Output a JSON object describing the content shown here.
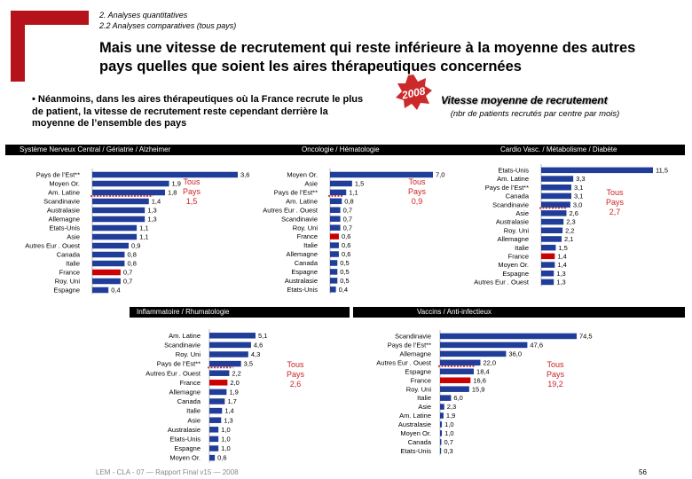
{
  "header": {
    "breadcrumb_line1": "2. Analyses quantitatives",
    "breadcrumb_line2": "2.2 Analyses comparatives (tous pays)",
    "title": "Mais une vitesse de recrutement qui reste inférieure à la moyenne des autres pays quelles que soient les aires thérapeutiques concernées"
  },
  "bullet": "• Néanmoins, dans les aires thérapeutiques où la France recrute le plus de patient, la vitesse de recrutement reste cependant derrière la moyenne de l’ensemble des pays",
  "badge": {
    "year": "2008",
    "color": "#cc2a2a"
  },
  "speed": {
    "title": "Vitesse moyenne de recrutement",
    "subtitle": "(nbr de patients recrutés par centre par mois)"
  },
  "colors": {
    "bar": "#1f3d99",
    "france": "#cc0000",
    "avg_line": "#cc3333",
    "tous": "#cc2222",
    "logo": "#b5121b"
  },
  "footer": {
    "text": "LEM - CLA - 07 — Rapport Final v15 — 2008",
    "page": "56"
  },
  "chart_data": [
    {
      "type": "bar",
      "orientation": "horizontal",
      "title": "Système Nerveux Central / Gériatrie / Alzheimer",
      "categories": [
        "Pays de l’Est**",
        "Moyen Or.",
        "Am. Latine",
        "Scandinavie",
        "Australasie",
        "Allemagne",
        "Etats-Unis",
        "Asie",
        "Autres Eur . Ouest",
        "Canada",
        "Italie",
        "France",
        "Roy. Uni",
        "Espagne"
      ],
      "values": [
        3.6,
        1.9,
        1.8,
        1.4,
        1.3,
        1.3,
        1.1,
        1.1,
        0.9,
        0.8,
        0.8,
        0.7,
        0.7,
        0.4
      ],
      "labels": [
        "3,6",
        "1,9",
        "1,8",
        "1,4",
        "1,3",
        "1,3",
        "1,1",
        "1,1",
        "0,9",
        "0,8",
        "0,8",
        "0,7",
        "0,7",
        "0,4"
      ],
      "average": {
        "label_line1": "Tous",
        "label_line2": "Pays",
        "label_value": "1,5",
        "value": 1.5
      },
      "xlim": [
        0,
        3.6
      ]
    },
    {
      "type": "bar",
      "orientation": "horizontal",
      "title": "Oncologie / Hématologie",
      "categories": [
        "Moyen Or.",
        "Asie",
        "Pays de l’Est**",
        "Am. Latine",
        "Autres Eur . Ouest",
        "Scandinavie",
        "Roy. Uni",
        "France",
        "Italie",
        "Allemagne",
        "Canada",
        "Espagne",
        "Australasie",
        "Etats-Unis"
      ],
      "values": [
        7.0,
        1.5,
        1.1,
        0.8,
        0.7,
        0.7,
        0.7,
        0.6,
        0.6,
        0.6,
        0.5,
        0.5,
        0.5,
        0.4
      ],
      "labels": [
        "7,0",
        "1,5",
        "1,1",
        "0,8",
        "0,7",
        "0,7",
        "0,7",
        "0,6",
        "0,6",
        "0,6",
        "0,5",
        "0,5",
        "0,5",
        "0,4"
      ],
      "average": {
        "label_line1": "Tous",
        "label_line2": "Pays",
        "label_value": "0,9",
        "value": 0.9
      },
      "xlim": [
        0,
        7.0
      ]
    },
    {
      "type": "bar",
      "orientation": "horizontal",
      "title": "Cardio Vasc. / Métabolisme / Diabète",
      "categories": [
        "Etats-Unis",
        "Am. Latine",
        "Pays de l’Est**",
        "Canada",
        "Scandinavie",
        "Asie",
        "Australasie",
        "Roy. Uni",
        "Allemagne",
        "Italie",
        "France",
        "Moyen Or.",
        "Espagne",
        "Autres Eur . Ouest"
      ],
      "values": [
        11.5,
        3.3,
        3.1,
        3.1,
        3.0,
        2.6,
        2.3,
        2.2,
        2.1,
        1.5,
        1.4,
        1.4,
        1.3,
        1.3
      ],
      "labels": [
        "11,5",
        "3,3",
        "3,1",
        "3,1",
        "3,0",
        "2,6",
        "2,3",
        "2,2",
        "2,1",
        "1,5",
        "1,4",
        "1,4",
        "1,3",
        "1,3"
      ],
      "average": {
        "label_line1": "Tous",
        "label_line2": "Pays",
        "label_value": "2,7",
        "value": 2.7
      },
      "xlim": [
        0,
        11.5
      ]
    },
    {
      "type": "bar",
      "orientation": "horizontal",
      "title": "Inflammatoire / Rhumatologie",
      "categories": [
        "Am. Latine",
        "Scandinavie",
        "Roy. Uni",
        "Pays de l’Est**",
        "Autres Eur . Ouest",
        "France",
        "Allemagne",
        "Canada",
        "Italie",
        "Asie",
        "Australasie",
        "Etats-Unis",
        "Espagne",
        "Moyen Or."
      ],
      "values": [
        5.1,
        4.6,
        4.3,
        3.5,
        2.2,
        2.0,
        1.9,
        1.7,
        1.4,
        1.3,
        1.0,
        1.0,
        1.0,
        0.6
      ],
      "labels": [
        "5,1",
        "4,6",
        "4,3",
        "3,5",
        "2,2",
        "2,0",
        "1,9",
        "1,7",
        "1,4",
        "1,3",
        "1,0",
        "1,0",
        "1,0",
        "0,6"
      ],
      "average": {
        "label_line1": "Tous",
        "label_line2": "Pays",
        "label_value": "2,6",
        "value": 2.6
      },
      "xlim": [
        0,
        5.1
      ]
    },
    {
      "type": "bar",
      "orientation": "horizontal",
      "title": "Vaccins / Anti-infectieux",
      "categories": [
        "Scandinavie",
        "Pays de l’Est**",
        "Allemagne",
        "Autres Eur . Ouest",
        "Espagne",
        "France",
        "Roy. Uni",
        "Italie",
        "Asie",
        "Am. Latine",
        "Australasie",
        "Moyen Or.",
        "Canada",
        "Etats-Unis"
      ],
      "values": [
        74.5,
        47.6,
        36.0,
        22.0,
        18.4,
        16.6,
        15.9,
        6.0,
        2.3,
        1.9,
        1.0,
        1.0,
        0.7,
        0.3
      ],
      "labels": [
        "74,5",
        "47,6",
        "36,0",
        "22,0",
        "18,4",
        "16,6",
        "15,9",
        "6,0",
        "2,3",
        "1,9",
        "1,0",
        "1,0",
        "0,7",
        "0,3"
      ],
      "average": {
        "label_line1": "Tous",
        "label_line2": "Pays",
        "label_value": "19,2",
        "value": 19.2
      },
      "xlim": [
        0,
        74.5
      ]
    }
  ]
}
